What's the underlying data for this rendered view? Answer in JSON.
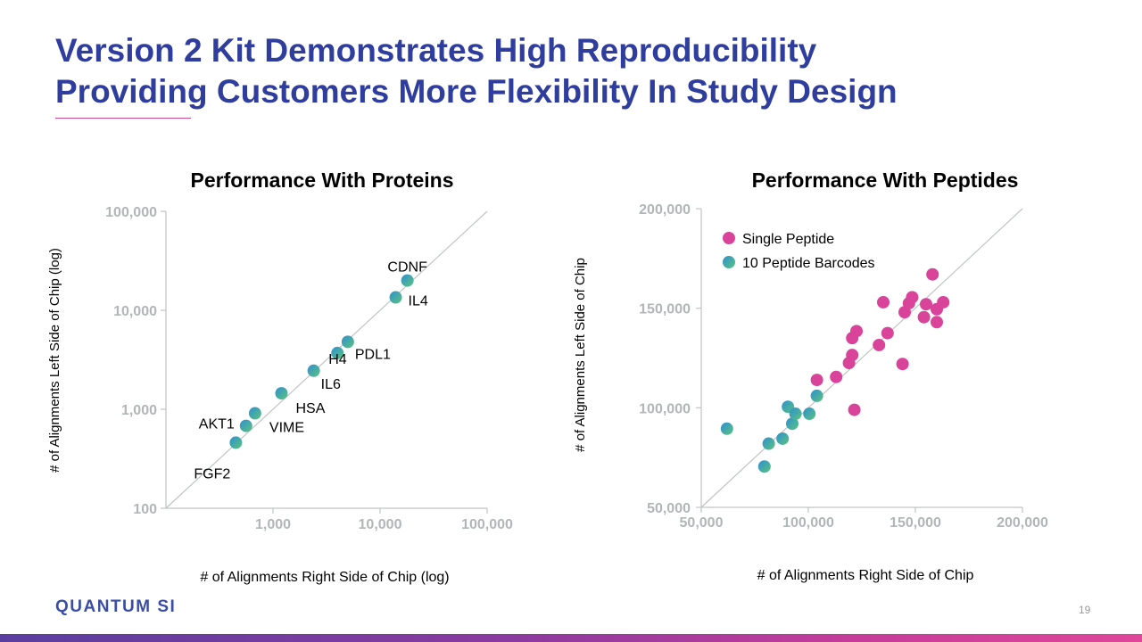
{
  "title_line1": "Version 2 Kit Demonstrates High Reproducibility",
  "title_line2": "Providing Customers More Flexibility In Study Design",
  "logo_text": "QUANTUM SI",
  "page_number": "19",
  "colors": {
    "title": "#2f3e9e",
    "single_peptide": "#d9439a",
    "barcode_gradient_start": "#2e8fd4",
    "barcode_gradient_end": "#5bc47b",
    "axis": "#c0c5c4",
    "tick_text": "#b0b7b6"
  },
  "chart_data": [
    {
      "type": "scatter",
      "title": "Performance With Proteins",
      "xlabel": "# of Alignments Right Side of Chip (log)",
      "ylabel": "# of Alignments Left Side of Chip (log)",
      "scale": "log",
      "xlim": [
        100,
        100000
      ],
      "ylim": [
        100,
        100000
      ],
      "x_ticks": [
        "1,000",
        "10,000",
        "100,000"
      ],
      "y_ticks": [
        "100",
        "1,000",
        "10,000",
        "100,000"
      ],
      "identity_line": true,
      "legend": "none",
      "points": [
        {
          "label": "CDNF",
          "x": 18000,
          "y": 20000
        },
        {
          "label": "IL4",
          "x": 14000,
          "y": 13500
        },
        {
          "label": "PDL1",
          "x": 5000,
          "y": 4800
        },
        {
          "label": "H4",
          "x": 4000,
          "y": 3700
        },
        {
          "label": "IL6",
          "x": 2400,
          "y": 2450
        },
        {
          "label": "HSA",
          "x": 1200,
          "y": 1450
        },
        {
          "label": "VIME",
          "x": 680,
          "y": 910
        },
        {
          "label": "AKT1",
          "x": 560,
          "y": 680
        },
        {
          "label": "FGF2",
          "x": 450,
          "y": 460
        }
      ]
    },
    {
      "type": "scatter",
      "title": "Performance With Peptides",
      "xlabel": "# of Alignments Right Side of Chip",
      "ylabel": "# of Alignments Left Side of Chip",
      "scale": "linear",
      "xlim": [
        50000,
        200000
      ],
      "ylim": [
        50000,
        200000
      ],
      "x_ticks": [
        "50,000",
        "100,000",
        "150,000",
        "200,000"
      ],
      "y_ticks": [
        "50,000",
        "100,000",
        "150,000",
        "200,000"
      ],
      "identity_line": true,
      "legend": "top-left",
      "series": [
        {
          "name": "Single Peptide",
          "points": [
            [
              104000,
              114000
            ],
            [
              113000,
              115500
            ],
            [
              119000,
              122500
            ],
            [
              120500,
              126500
            ],
            [
              120500,
              135000
            ],
            [
              122500,
              138500
            ],
            [
              121500,
              99000
            ],
            [
              133000,
              131500
            ],
            [
              137000,
              137500
            ],
            [
              135000,
              153000
            ],
            [
              144000,
              122000
            ],
            [
              145000,
              148000
            ],
            [
              147000,
              152500
            ],
            [
              148500,
              155500
            ],
            [
              154000,
              145500
            ],
            [
              155000,
              152000
            ],
            [
              158000,
              167000
            ],
            [
              160000,
              149500
            ],
            [
              160000,
              143000
            ],
            [
              163000,
              153000
            ]
          ]
        },
        {
          "name": "10 Peptide Barcodes",
          "points": [
            [
              62000,
              89500
            ],
            [
              79500,
              70500
            ],
            [
              81500,
              82000
            ],
            [
              88000,
              84500
            ],
            [
              90500,
              100500
            ],
            [
              92500,
              92000
            ],
            [
              94000,
              97000
            ],
            [
              100500,
              97000
            ],
            [
              104000,
              106000
            ]
          ]
        }
      ]
    }
  ]
}
